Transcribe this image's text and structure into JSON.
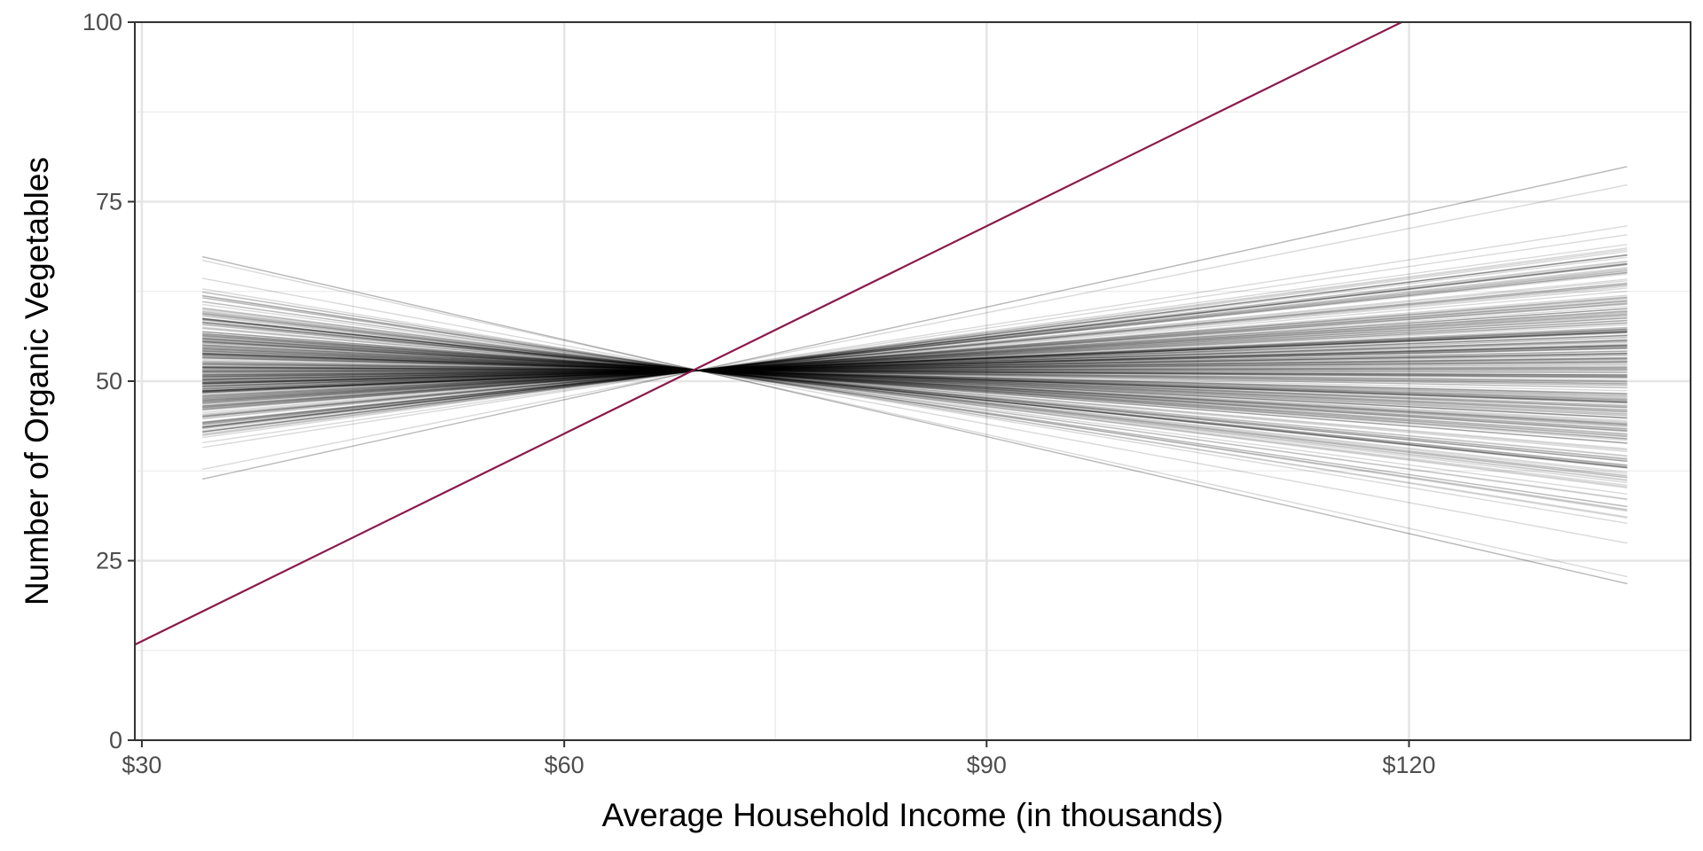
{
  "chart_data": {
    "type": "line",
    "title": "",
    "xlabel": "Average Household Income (in thousands)",
    "ylabel": "Number of Organic Vegetables",
    "xlim": [
      29.5,
      140
    ],
    "ylim": [
      0,
      100
    ],
    "x_ticks": [
      {
        "value": 30,
        "label": "$30"
      },
      {
        "value": 60,
        "label": "$60"
      },
      {
        "value": 90,
        "label": "$90"
      },
      {
        "value": 120,
        "label": "$120"
      }
    ],
    "y_ticks": [
      {
        "value": 0,
        "label": "0"
      },
      {
        "value": 25,
        "label": "25"
      },
      {
        "value": 50,
        "label": "50"
      },
      {
        "value": 75,
        "label": "75"
      },
      {
        "value": 100,
        "label": "100"
      }
    ],
    "x_minor_gridlines": [
      45,
      75,
      105
    ],
    "y_minor_gridlines": [
      12.5,
      37.5,
      62.5,
      87.5
    ],
    "grid": true,
    "prior_lines": {
      "count": 300,
      "x_range": [
        34.3,
        135.5
      ],
      "pivot": {
        "x": 69.5,
        "y": 51.5
      },
      "slope_range": [
        -0.45,
        0.43
      ],
      "color": "#000000",
      "opacity": 0.15
    },
    "highlight_line": {
      "x": [
        29.5,
        120
      ],
      "y": [
        13.3,
        100.5
      ],
      "color": "#8b1a4a"
    }
  }
}
